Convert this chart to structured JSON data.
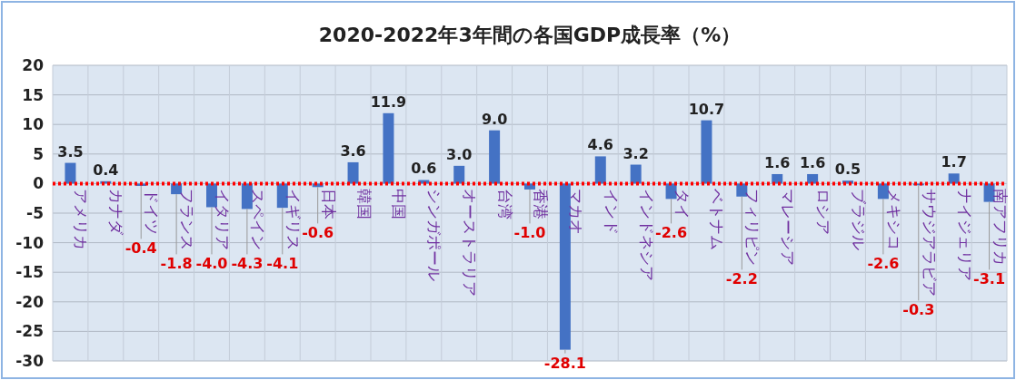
{
  "chart_data": {
    "type": "bar",
    "title": "2020-2022年3年間の各国GDP成長率（%）",
    "categories": [
      "アメリカ",
      "カナダ",
      "ドイツ",
      "フランス",
      "イタリア",
      "スペイン",
      "イギリス",
      "日本",
      "韓国",
      "中国",
      "シンガポール",
      "オーストラリア",
      "台湾",
      "香港",
      "マカオ",
      "インド",
      "インドネシア",
      "タイ",
      "ベトナム",
      "フィリピン",
      "マレーシア",
      "ロシア",
      "ブラジル",
      "メキシコ",
      "サウジアラビア",
      "ナイジェリア",
      "南アフリカ"
    ],
    "values": [
      3.5,
      0.4,
      -0.4,
      -1.8,
      -4.0,
      -4.3,
      -4.1,
      -0.6,
      3.6,
      11.9,
      0.6,
      3.0,
      9.0,
      -1.0,
      -28.1,
      4.6,
      3.2,
      -2.6,
      10.7,
      -2.2,
      1.6,
      1.6,
      0.5,
      -2.6,
      -0.3,
      1.7,
      -3.1
    ],
    "color": "#4472c4",
    "ylim": [
      -30,
      20
    ],
    "yticks": [
      -30,
      -25,
      -20,
      -15,
      -10,
      -5,
      0,
      5,
      10,
      15,
      20
    ],
    "grid": true,
    "value_labels": [
      "3.5",
      "0.4",
      "-0.4",
      "-1.8",
      "-4.0",
      "-4.3",
      "-4.1",
      "-0.6",
      "3.6",
      "11.9",
      "0.6",
      "3.0",
      "9.0",
      "-1.0",
      "-28.1",
      "4.6",
      "3.2",
      "-2.6",
      "10.7",
      "-2.2",
      "1.6",
      "1.6",
      "0.5",
      "-2.6",
      "-0.3",
      "1.7",
      "-3.1"
    ],
    "ref_lines": [
      {
        "axis": "y",
        "value": 0,
        "color": "#ff0000",
        "line_style": "dotted"
      }
    ]
  }
}
